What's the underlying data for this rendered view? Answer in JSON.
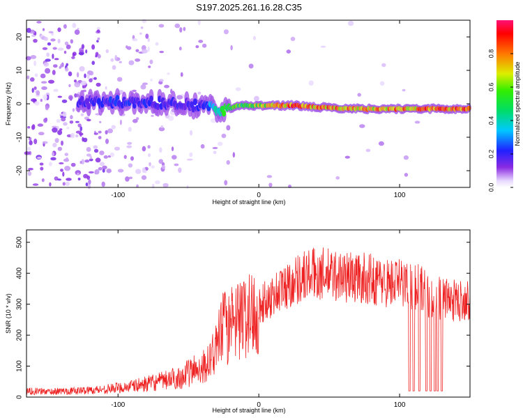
{
  "title": "S197.2025.261.16.28.C35",
  "colors": {
    "snr_line": "#ee2222",
    "axis": "#000000",
    "background": "#ffffff"
  },
  "chart_data": [
    {
      "type": "heatmap",
      "title": "S197.2025.261.16.28.C35",
      "xlabel": "Height of straight line (km)",
      "ylabel": "Frequency (Hz)",
      "xlim": [
        -165,
        150
      ],
      "ylim": [
        -25,
        25
      ],
      "x_ticks": [
        -100,
        0,
        100
      ],
      "y_ticks": [
        -20,
        -10,
        0,
        10,
        20
      ],
      "colorbar": {
        "label": "Normalized spectral amplitude",
        "range": [
          0,
          1
        ],
        "ticks": [
          0.0,
          0.2,
          0.4,
          0.6,
          0.8
        ],
        "colormap": "rainbow (white at 0, purple, blue, cyan, green, yellow, red, magenta at 1)"
      },
      "signal_track": {
        "description": "Dominant frequency ridge vs height",
        "points": [
          {
            "x": -125,
            "y": 0.5,
            "amp": 0.2
          },
          {
            "x": -100,
            "y": 0.5,
            "amp": 0.25
          },
          {
            "x": -80,
            "y": 0.5,
            "amp": 0.22
          },
          {
            "x": -60,
            "y": 0.0,
            "amp": 0.2
          },
          {
            "x": -40,
            "y": -0.5,
            "amp": 0.22
          },
          {
            "x": -25,
            "y": -2.0,
            "amp": 0.55
          },
          {
            "x": -15,
            "y": -0.5,
            "amp": 0.6
          },
          {
            "x": 0,
            "y": -0.5,
            "amp": 0.7
          },
          {
            "x": 25,
            "y": -0.5,
            "amp": 0.9
          },
          {
            "x": 50,
            "y": -1.2,
            "amp": 0.85
          },
          {
            "x": 75,
            "y": -1.5,
            "amp": 0.8
          },
          {
            "x": 100,
            "y": -1.5,
            "amp": 0.85
          },
          {
            "x": 125,
            "y": -1.5,
            "amp": 0.9
          },
          {
            "x": 150,
            "y": -1.5,
            "amp": 0.9
          }
        ]
      }
    },
    {
      "type": "line",
      "xlabel": "Height of straight line (km)",
      "ylabel": "SNR (10 * v/v)",
      "xlim": [
        -165,
        150
      ],
      "ylim": [
        0,
        540
      ],
      "x_ticks": [
        -100,
        0,
        100
      ],
      "y_ticks": [
        0,
        100,
        200,
        300,
        400,
        500
      ],
      "series": [
        {
          "name": "SNR",
          "x": [
            -165,
            -150,
            -130,
            -110,
            -90,
            -70,
            -55,
            -45,
            -35,
            -30,
            -25,
            -20,
            -15,
            -10,
            -5,
            0,
            10,
            20,
            30,
            40,
            50,
            60,
            70,
            80,
            90,
            100,
            110,
            115,
            120,
            125,
            130,
            140,
            150
          ],
          "values": [
            20,
            18,
            20,
            25,
            35,
            50,
            65,
            90,
            110,
            160,
            230,
            210,
            240,
            260,
            270,
            290,
            330,
            360,
            390,
            400,
            395,
            390,
            385,
            380,
            370,
            370,
            360,
            350,
            330,
            320,
            320,
            310,
            320
          ]
        }
      ],
      "dropouts_x": [
        107,
        110,
        114,
        119,
        122,
        125,
        127,
        130
      ]
    }
  ]
}
